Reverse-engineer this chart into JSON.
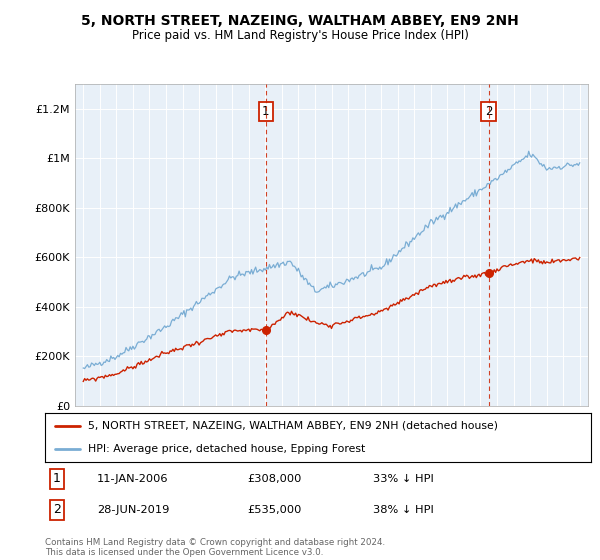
{
  "title": "5, NORTH STREET, NAZEING, WALTHAM ABBEY, EN9 2NH",
  "subtitle": "Price paid vs. HM Land Registry's House Price Index (HPI)",
  "background_color": "#ffffff",
  "plot_bg_color": "#e8f0f8",
  "hpi_color": "#7aadd4",
  "price_color": "#cc2200",
  "dashed_line_color": "#cc2200",
  "marker_color": "#cc2200",
  "ylim": [
    0,
    1300000
  ],
  "yticks": [
    0,
    200000,
    400000,
    600000,
    800000,
    1000000,
    1200000
  ],
  "ytick_labels": [
    "£0",
    "£200K",
    "£400K",
    "£600K",
    "£800K",
    "£1M",
    "£1.2M"
  ],
  "sale1_year": 2006.03,
  "sale1_price": 308000,
  "sale2_year": 2019.49,
  "sale2_price": 535000,
  "legend_entry1": "5, NORTH STREET, NAZEING, WALTHAM ABBEY, EN9 2NH (detached house)",
  "legend_entry2": "HPI: Average price, detached house, Epping Forest",
  "footer1": "Contains HM Land Registry data © Crown copyright and database right 2024.",
  "footer2": "This data is licensed under the Open Government Licence v3.0.",
  "table_row1_num": "1",
  "table_row1_date": "11-JAN-2006",
  "table_row1_price": "£308,000",
  "table_row1_hpi": "33% ↓ HPI",
  "table_row2_num": "2",
  "table_row2_date": "28-JUN-2019",
  "table_row2_price": "£535,000",
  "table_row2_hpi": "38% ↓ HPI"
}
